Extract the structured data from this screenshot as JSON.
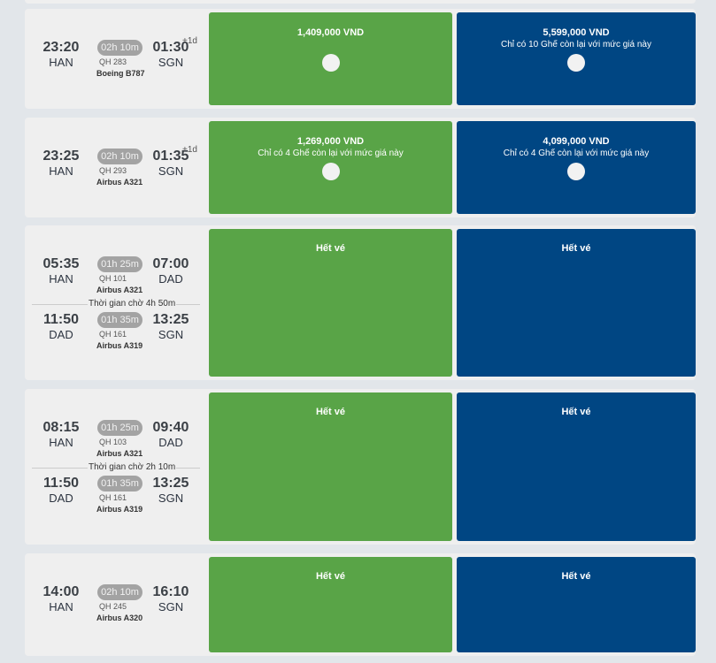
{
  "wait_label": "Thời gian chờ",
  "flights": [
    {
      "segments": [
        {
          "dep_time": "23:20",
          "dep_code": "HAN",
          "duration": "02h 10m",
          "arr_time": "01:30",
          "arr_code": "SGN",
          "plus": "+1d",
          "flight_no": "QH 283",
          "aircraft": "Boeing B787"
        }
      ],
      "economy": {
        "price": "1,409,000 VND",
        "seats": ""
      },
      "business": {
        "price": "5,599,000 VND",
        "seats": "Chỉ có 10 Ghế còn lại với mức giá này"
      }
    },
    {
      "segments": [
        {
          "dep_time": "23:25",
          "dep_code": "HAN",
          "duration": "02h 10m",
          "arr_time": "01:35",
          "arr_code": "SGN",
          "plus": "+1d",
          "flight_no": "QH 293",
          "aircraft": "Airbus A321"
        }
      ],
      "economy": {
        "price": "1,269,000 VND",
        "seats": "Chỉ có 4 Ghế còn lại với mức giá này"
      },
      "business": {
        "price": "4,099,000 VND",
        "seats": "Chỉ có 4 Ghế còn lại với mức giá này"
      }
    },
    {
      "segments": [
        {
          "dep_time": "05:35",
          "dep_code": "HAN",
          "duration": "01h 25m",
          "arr_time": "07:00",
          "arr_code": "DAD",
          "flight_no": "QH 101",
          "aircraft": "Airbus A321"
        },
        {
          "dep_time": "11:50",
          "dep_code": "DAD",
          "duration": "01h 35m",
          "arr_time": "13:25",
          "arr_code": "SGN",
          "flight_no": "QH 161",
          "aircraft": "Airbus A319"
        }
      ],
      "wait": "4h  50m",
      "economy": {
        "soldout": "Hết vé"
      },
      "business": {
        "soldout": "Hết vé"
      }
    },
    {
      "segments": [
        {
          "dep_time": "08:15",
          "dep_code": "HAN",
          "duration": "01h 25m",
          "arr_time": "09:40",
          "arr_code": "DAD",
          "flight_no": "QH 103",
          "aircraft": "Airbus A321"
        },
        {
          "dep_time": "11:50",
          "dep_code": "DAD",
          "duration": "01h 35m",
          "arr_time": "13:25",
          "arr_code": "SGN",
          "flight_no": "QH 161",
          "aircraft": "Airbus A319"
        }
      ],
      "wait": "2h  10m",
      "economy": {
        "soldout": "Hết vé"
      },
      "business": {
        "soldout": "Hết vé"
      }
    },
    {
      "segments": [
        {
          "dep_time": "14:00",
          "dep_code": "HAN",
          "duration": "02h 10m",
          "arr_time": "16:10",
          "arr_code": "SGN",
          "flight_no": "QH 245",
          "aircraft": "Airbus A320"
        }
      ],
      "economy": {
        "soldout": "Hết vé"
      },
      "business": {
        "soldout": "Hết vé"
      }
    }
  ]
}
